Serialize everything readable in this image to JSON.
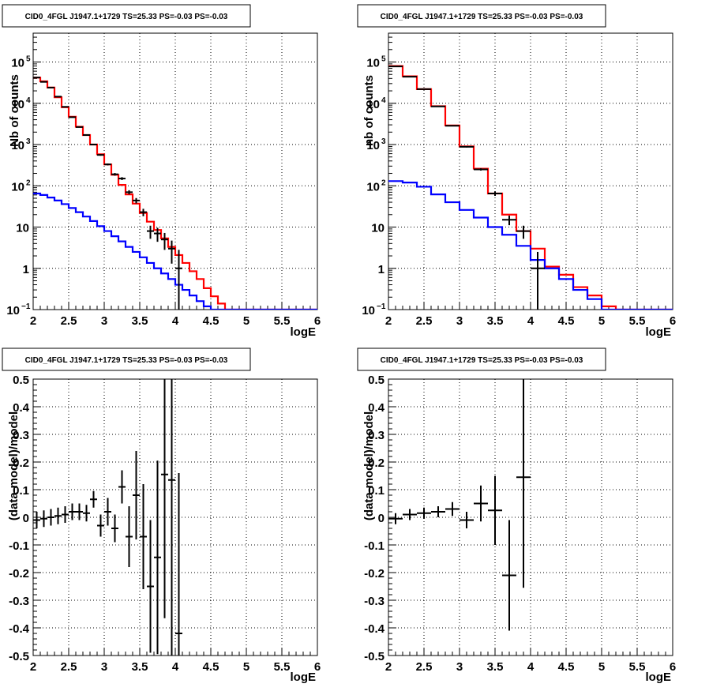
{
  "panels": [
    {
      "id": "counts-fine",
      "title": "CID0_4FGL J1947.1+1729 TS=25.33 PS=-0.03 PS=-0.03",
      "xlabel": "logE",
      "ylabel": "Nb of counts",
      "log_y": true
    },
    {
      "id": "counts-coarse",
      "title": "CID0_4FGL J1947.1+1729 TS=25.33 PS=-0.03 PS=-0.03",
      "xlabel": "logE",
      "ylabel": "nb of counts",
      "log_y": true
    },
    {
      "id": "residual-fine",
      "title": "CID0_4FGL J1947.1+1729 TS=25.33 PS=-0.03 PS=-0.03",
      "xlabel": "logE",
      "ylabel": "(data-model)/model",
      "log_y": false
    },
    {
      "id": "residual-coarse",
      "title": "CID0_4FGL J1947.1+1729 TS=25.33 PS=-0.03 PS=-0.03",
      "xlabel": "logE",
      "ylabel": "(data-model)/model",
      "log_y": false
    }
  ],
  "chart_data": [
    {
      "type": "line",
      "title": "CID0_4FGL J1947.1+1729 TS=25.33 PS=-0.03 PS=-0.03",
      "xlabel": "logE",
      "ylabel": "Nb of counts",
      "xlim": [
        2,
        6
      ],
      "ylim": [
        0.1,
        500000
      ],
      "yscale": "log",
      "grid": true,
      "xticks": [
        "2",
        "2.5",
        "3",
        "3.5",
        "4",
        "4.5",
        "5",
        "5.5",
        "6"
      ],
      "yticks": [
        "10⁻¹",
        "1",
        "10",
        "10²",
        "10³",
        "10⁴",
        "10⁵"
      ],
      "bin_edges": [
        2.0,
        2.1,
        2.2,
        2.3,
        2.4,
        2.5,
        2.6,
        2.7,
        2.8,
        2.9,
        3.0,
        3.1,
        3.2,
        3.3,
        3.4,
        3.5,
        3.6,
        3.7,
        3.8,
        3.9,
        4.0,
        4.1,
        4.2,
        4.3,
        4.4,
        4.5,
        4.6,
        4.7,
        4.8,
        4.9,
        5.0,
        5.1,
        5.2,
        5.3,
        5.4,
        5.5,
        5.6,
        5.7,
        5.8,
        5.9,
        6.0
      ],
      "series": [
        {
          "color": "#ff0000",
          "style": "step",
          "values": [
            42000,
            34000,
            24000,
            14000,
            8000,
            4700,
            2700,
            1700,
            1000,
            580,
            330,
            185,
            105,
            62,
            37,
            22,
            13.5,
            8.5,
            5.3,
            3.3,
            2.1,
            1.35,
            0.85,
            0.55,
            0.33,
            0.21,
            0.14,
            0.1,
            0.1,
            0.1,
            0.1,
            0.1,
            0.1,
            0.1,
            0.1,
            0.1,
            0.1,
            0.1,
            0.1,
            0.1
          ]
        },
        {
          "color": "#0000ff",
          "style": "step",
          "values": [
            65,
            60,
            52,
            44,
            36,
            29,
            23,
            18,
            14,
            10.5,
            8,
            6,
            4.5,
            3.3,
            2.5,
            1.85,
            1.35,
            1.0,
            0.75,
            0.55,
            0.4,
            0.3,
            0.22,
            0.16,
            0.12,
            0.1,
            0.1,
            0.1,
            0.1,
            0.1,
            0.1,
            0.1,
            0.1,
            0.1,
            0.1,
            0.1,
            0.1,
            0.1,
            0.1,
            0.1
          ]
        }
      ],
      "data_points": {
        "color": "#000000",
        "x": [
          2.05,
          2.15,
          2.25,
          2.35,
          2.45,
          2.55,
          2.65,
          2.75,
          2.85,
          2.95,
          3.05,
          3.15,
          3.25,
          3.35,
          3.45,
          3.55,
          3.65,
          3.75,
          3.85,
          3.95,
          4.05
        ],
        "y": [
          42000,
          33000,
          24000,
          14500,
          8200,
          4600,
          2650,
          1700,
          1000,
          560,
          330,
          190,
          150,
          70,
          44,
          23,
          8,
          7,
          5,
          3,
          1
        ],
        "yerr_low": [
          200,
          180,
          150,
          120,
          90,
          70,
          50,
          40,
          30,
          24,
          18,
          14,
          12,
          8,
          6.5,
          4.7,
          2.8,
          2.6,
          2.2,
          1.7,
          0.95
        ],
        "yerr_high": [
          200,
          180,
          150,
          120,
          90,
          70,
          50,
          40,
          30,
          24,
          18,
          14,
          12,
          8,
          6.5,
          4.7,
          2.8,
          2.6,
          2.2,
          1.7,
          1.8
        ],
        "xerr": 0.05
      }
    },
    {
      "type": "line",
      "title": "CID0_4FGL J1947.1+1729 TS=25.33 PS=-0.03 PS=-0.03",
      "xlabel": "logE",
      "ylabel": "nb of counts",
      "xlim": [
        2,
        6
      ],
      "ylim": [
        0.1,
        500000
      ],
      "yscale": "log",
      "grid": true,
      "xticks": [
        "2",
        "2.5",
        "3",
        "3.5",
        "4",
        "4.5",
        "5",
        "5.5",
        "6"
      ],
      "yticks": [
        "10⁻¹",
        "1",
        "10",
        "10²",
        "10³",
        "10⁴",
        "10⁵"
      ],
      "bin_edges": [
        2.0,
        2.2,
        2.4,
        2.6,
        2.8,
        3.0,
        3.2,
        3.4,
        3.6,
        3.8,
        4.0,
        4.2,
        4.4,
        4.6,
        4.8,
        5.0,
        5.2,
        5.4,
        5.6,
        5.8,
        6.0
      ],
      "series": [
        {
          "color": "#ff0000",
          "style": "step",
          "values": [
            80000,
            45000,
            22000,
            8500,
            2900,
            900,
            260,
            65,
            20,
            8,
            3,
            1.1,
            0.7,
            0.35,
            0.22,
            0.12,
            0.1,
            0.1,
            0.1,
            0.1
          ]
        },
        {
          "color": "#0000ff",
          "style": "step",
          "values": [
            130,
            120,
            95,
            62,
            40,
            26,
            17,
            10,
            6.5,
            3.5,
            1.6,
            1.0,
            0.55,
            0.3,
            0.18,
            0.1,
            0.1,
            0.1,
            0.1,
            0.1
          ]
        }
      ],
      "data_points": {
        "color": "#000000",
        "x": [
          2.1,
          2.3,
          2.5,
          2.7,
          2.9,
          3.1,
          3.3,
          3.5,
          3.7,
          3.9,
          4.1
        ],
        "y": [
          78000,
          44000,
          22000,
          8400,
          2850,
          880,
          250,
          65,
          15,
          8,
          1
        ],
        "yerr_low": [
          280,
          210,
          150,
          92,
          53,
          30,
          16,
          8,
          3.9,
          2.8,
          0.9
        ],
        "yerr_high": [
          280,
          210,
          150,
          92,
          53,
          30,
          16,
          8,
          3.9,
          2.8,
          1.5
        ],
        "xerr": 0.1
      }
    },
    {
      "type": "scatter",
      "title": "CID0_4FGL J1947.1+1729 TS=25.33 PS=-0.03 PS=-0.03",
      "xlabel": "logE",
      "ylabel": "(data-model)/model",
      "xlim": [
        2,
        6
      ],
      "ylim": [
        -0.5,
        0.5
      ],
      "grid": true,
      "xticks": [
        "2",
        "2.5",
        "3",
        "3.5",
        "4",
        "4.5",
        "5",
        "5.5",
        "6"
      ],
      "yticks": [
        "-0.5",
        "-0.4",
        "-0.3",
        "-0.2",
        "-0.1",
        "0",
        "0.1",
        "0.2",
        "0.3",
        "0.4",
        "0.5"
      ],
      "data_points": {
        "color": "#000000",
        "x": [
          2.05,
          2.15,
          2.25,
          2.35,
          2.45,
          2.55,
          2.65,
          2.75,
          2.85,
          2.95,
          3.05,
          3.15,
          3.25,
          3.35,
          3.45,
          3.55,
          3.65,
          3.75,
          3.85,
          3.95,
          4.05
        ],
        "y": [
          -0.01,
          -0.005,
          0.0,
          0.005,
          0.01,
          0.02,
          0.02,
          0.015,
          0.065,
          -0.03,
          0.02,
          -0.04,
          0.11,
          -0.07,
          0.08,
          -0.07,
          -0.25,
          -0.145,
          0.155,
          0.135,
          -0.42
        ],
        "yerr": [
          0.03,
          0.03,
          0.03,
          0.03,
          0.03,
          0.03,
          0.03,
          0.03,
          0.03,
          0.04,
          0.05,
          0.05,
          0.06,
          0.11,
          0.16,
          0.19,
          0.24,
          0.35,
          0.52,
          0.65,
          0.58
        ],
        "xerr": 0.05
      }
    },
    {
      "type": "scatter",
      "title": "CID0_4FGL J1947.1+1729 TS=25.33 PS=-0.03 PS=-0.03",
      "xlabel": "logE",
      "ylabel": "(data-model)/model",
      "xlim": [
        2,
        6
      ],
      "ylim": [
        -0.5,
        0.5
      ],
      "grid": true,
      "xticks": [
        "2",
        "2.5",
        "3",
        "3.5",
        "4",
        "4.5",
        "5",
        "5.5",
        "6"
      ],
      "yticks": [
        "-0.5",
        "-0.4",
        "-0.3",
        "-0.2",
        "-0.1",
        "0",
        "0.1",
        "0.2",
        "0.3",
        "0.4",
        "0.5"
      ],
      "data_points": {
        "color": "#000000",
        "x": [
          2.1,
          2.3,
          2.5,
          2.7,
          2.9,
          3.1,
          3.3,
          3.5,
          3.7,
          3.9
        ],
        "y": [
          -0.005,
          0.01,
          0.015,
          0.02,
          0.03,
          -0.01,
          0.05,
          0.025,
          -0.21,
          0.145
        ],
        "yerr": [
          0.02,
          0.02,
          0.02,
          0.02,
          0.025,
          0.03,
          0.065,
          0.125,
          0.2,
          0.4
        ],
        "xerr": 0.1
      }
    }
  ]
}
